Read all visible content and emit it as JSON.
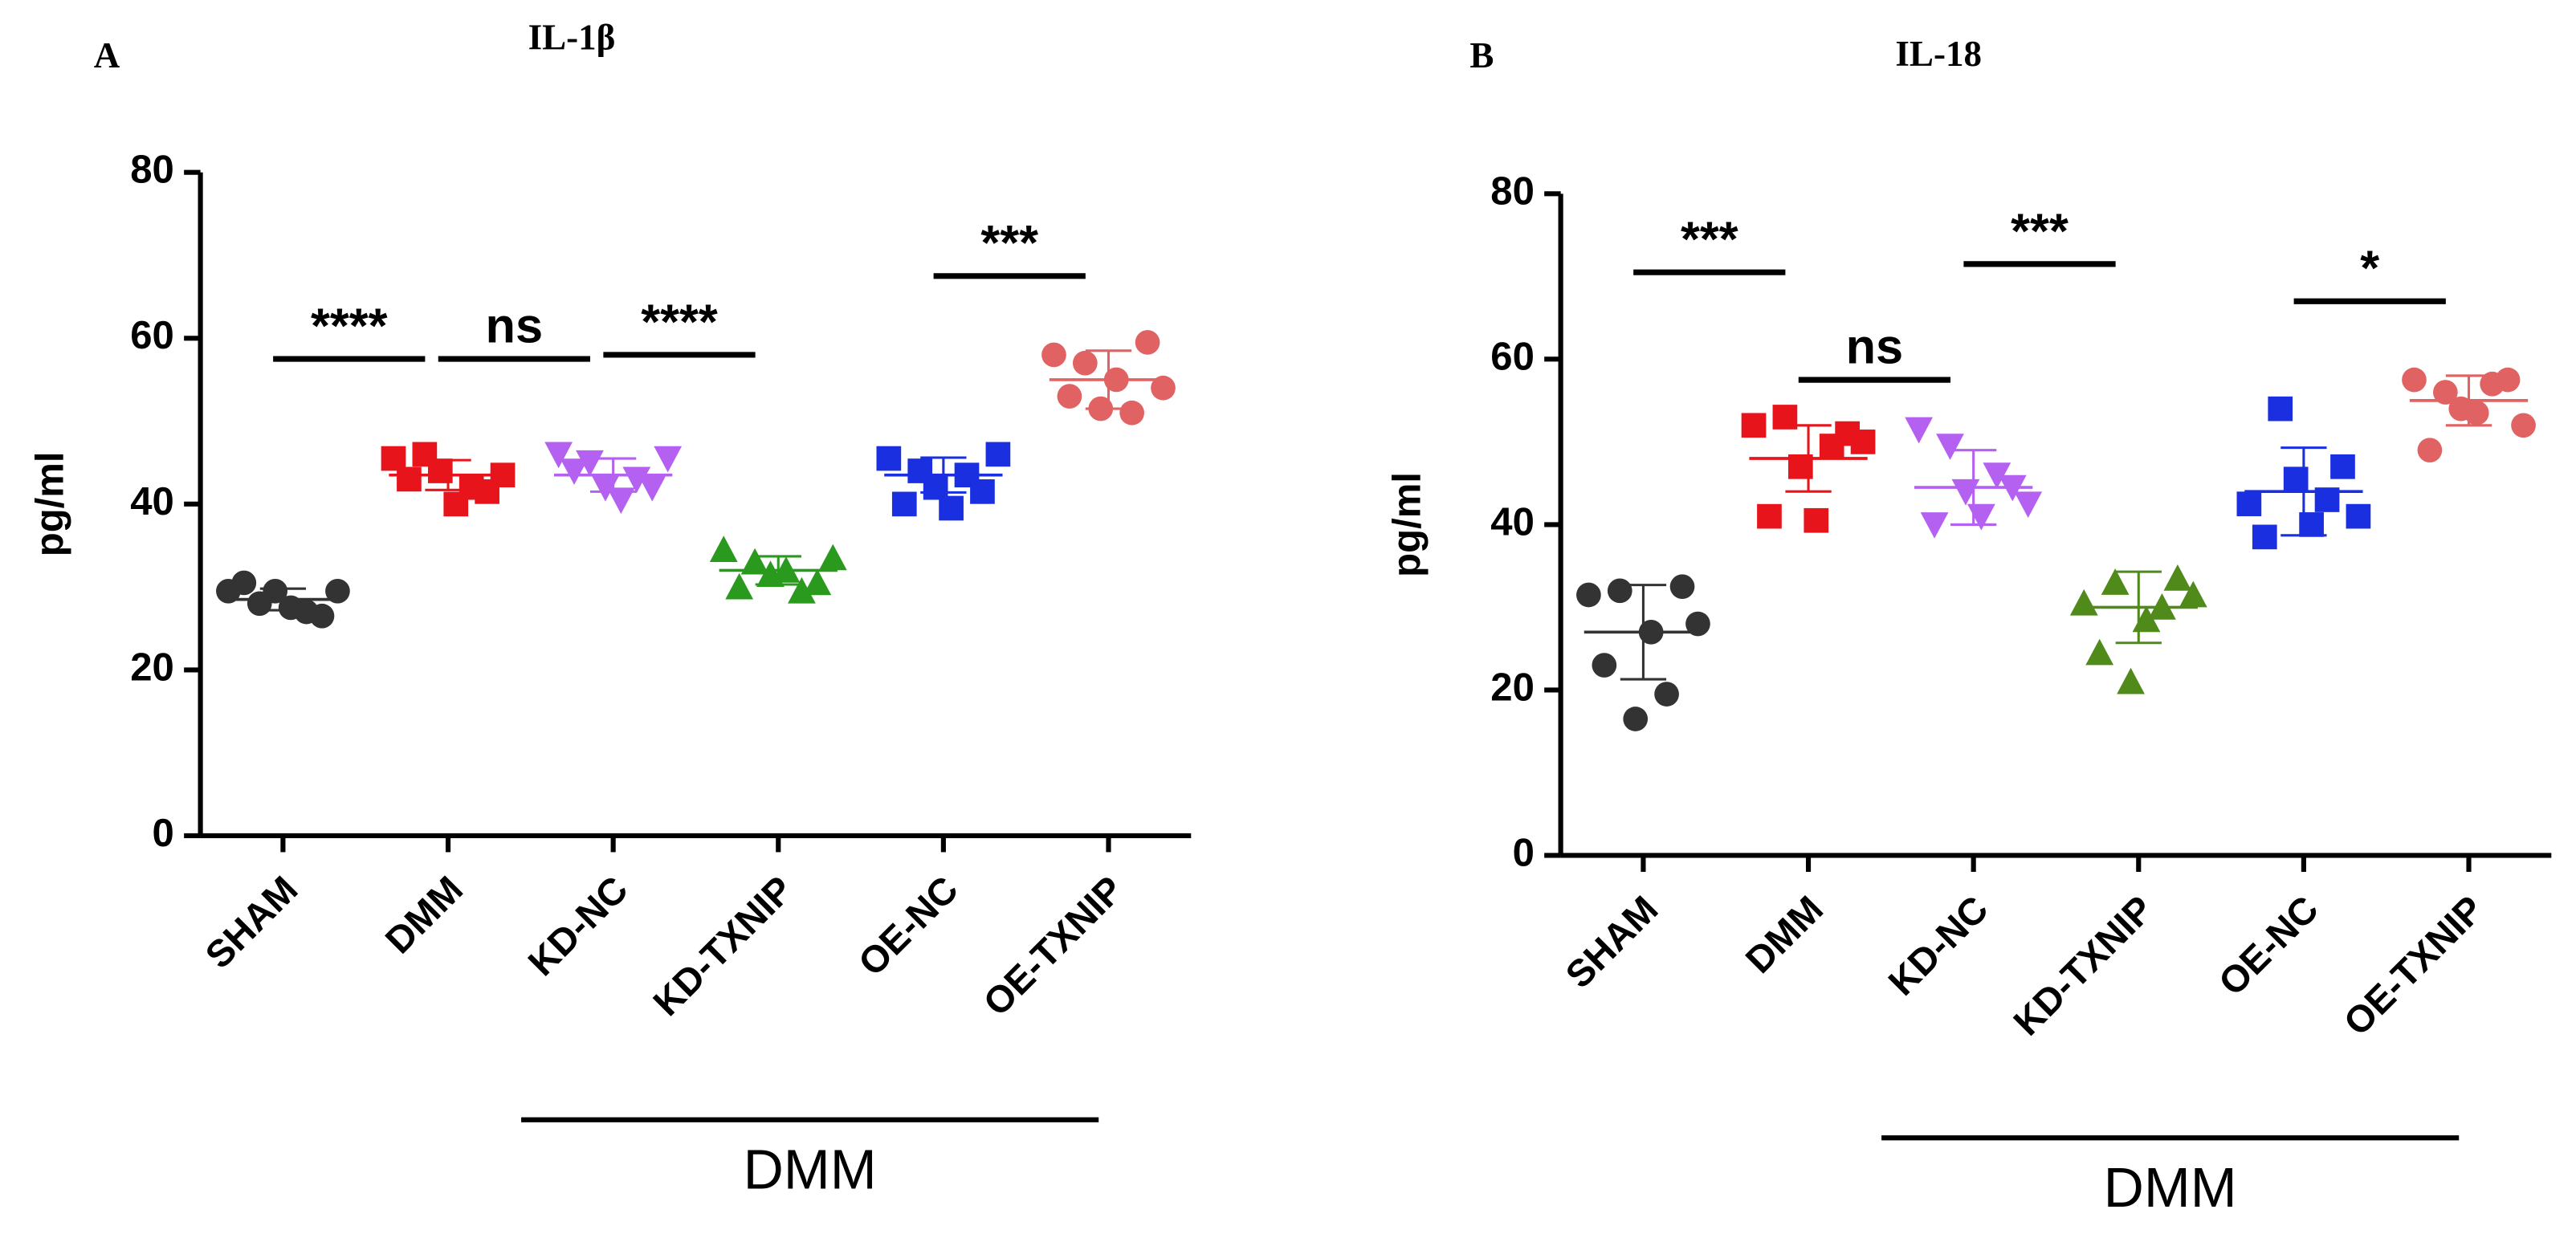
{
  "chart_data": [
    {
      "type": "dot",
      "panel": "A",
      "title": "IL-1β",
      "ylabel": "pg/ml",
      "categories": [
        "SHAM",
        "DMM",
        "KD-NC",
        "KD-TXNIP",
        "OE-NC",
        "OE-TXNIP"
      ],
      "colors": [
        "#333333",
        "#e8141b",
        "#b460f0",
        "#2a9a1e",
        "#1a2fe0",
        "#e06262"
      ],
      "markers": [
        "circle",
        "square",
        "triangle-down",
        "triangle-up",
        "square",
        "circle"
      ],
      "values": [
        [
          29.5,
          30.5,
          28,
          29.5,
          27.5,
          27,
          26.5,
          29.5
        ],
        [
          45.5,
          43,
          46,
          44,
          40,
          42,
          41.5,
          43.5
        ],
        [
          46,
          44,
          45,
          42,
          40.5,
          43,
          42,
          45.5
        ],
        [
          34.5,
          30,
          33,
          31.5,
          32,
          29.5,
          30.5,
          33.5
        ],
        [
          45.5,
          40,
          44,
          42,
          39.5,
          43.5,
          41.5,
          46
        ],
        [
          58,
          53,
          57,
          51.5,
          55,
          51,
          59.5,
          54
        ]
      ],
      "means": [
        28.5,
        43.5,
        43.5,
        32,
        43.5,
        55
      ],
      "sd": [
        1.3,
        1.8,
        2,
        1.7,
        2.1,
        3.5
      ],
      "comparisons": [
        {
          "groups": [
            0,
            1
          ],
          "y": 57.5,
          "label": "****"
        },
        {
          "groups": [
            1,
            2
          ],
          "y": 57.5,
          "label": "ns"
        },
        {
          "groups": [
            2,
            3
          ],
          "y": 58,
          "label": "****"
        },
        {
          "groups": [
            4,
            5
          ],
          "y": 67.5,
          "label": "***"
        }
      ],
      "group_label": "DMM",
      "ylim": [
        0,
        80
      ],
      "yticks": [
        0,
        20,
        40,
        60,
        80
      ]
    },
    {
      "type": "dot",
      "panel": "B",
      "title": "IL-18",
      "ylabel": "pg/ml",
      "categories": [
        "SHAM",
        "DMM",
        "KD-NC",
        "KD-TXNIP",
        "OE-NC",
        "OE-TXNIP"
      ],
      "colors": [
        "#333333",
        "#e8141b",
        "#b460f0",
        "#4f8a1a",
        "#1a2fe0",
        "#e06262"
      ],
      "markers": [
        "circle",
        "square",
        "triangle-down",
        "triangle-up",
        "square",
        "circle"
      ],
      "values": [
        [
          31.5,
          23,
          32,
          16.5,
          27,
          19.5,
          32.5,
          28
        ],
        [
          52,
          41,
          53,
          47,
          40.5,
          49.5,
          51,
          50
        ],
        [
          51.5,
          40,
          49.5,
          44,
          41,
          46,
          44.5,
          42.5
        ],
        [
          30.5,
          24.5,
          33,
          21,
          28.5,
          30,
          33.5,
          31.5
        ],
        [
          42.5,
          38.5,
          54,
          45.5,
          40,
          43,
          47,
          41
        ],
        [
          57.5,
          49,
          56,
          54,
          53.5,
          57,
          57.5,
          52
        ]
      ],
      "means": [
        27,
        48,
        44.5,
        30,
        44,
        55
      ],
      "sd": [
        5.7,
        4,
        4.5,
        4.3,
        5.3,
        3
      ],
      "comparisons": [
        {
          "groups": [
            0,
            1
          ],
          "y": 70.5,
          "label": "***"
        },
        {
          "groups": [
            1,
            2
          ],
          "y": 57.5,
          "label": "ns"
        },
        {
          "groups": [
            2,
            3
          ],
          "y": 71.5,
          "label": "***"
        },
        {
          "groups": [
            4,
            5
          ],
          "y": 67,
          "label": "*"
        }
      ],
      "group_label": "DMM",
      "ylim": [
        0,
        80
      ],
      "yticks": [
        0,
        20,
        40,
        60,
        80
      ]
    }
  ]
}
